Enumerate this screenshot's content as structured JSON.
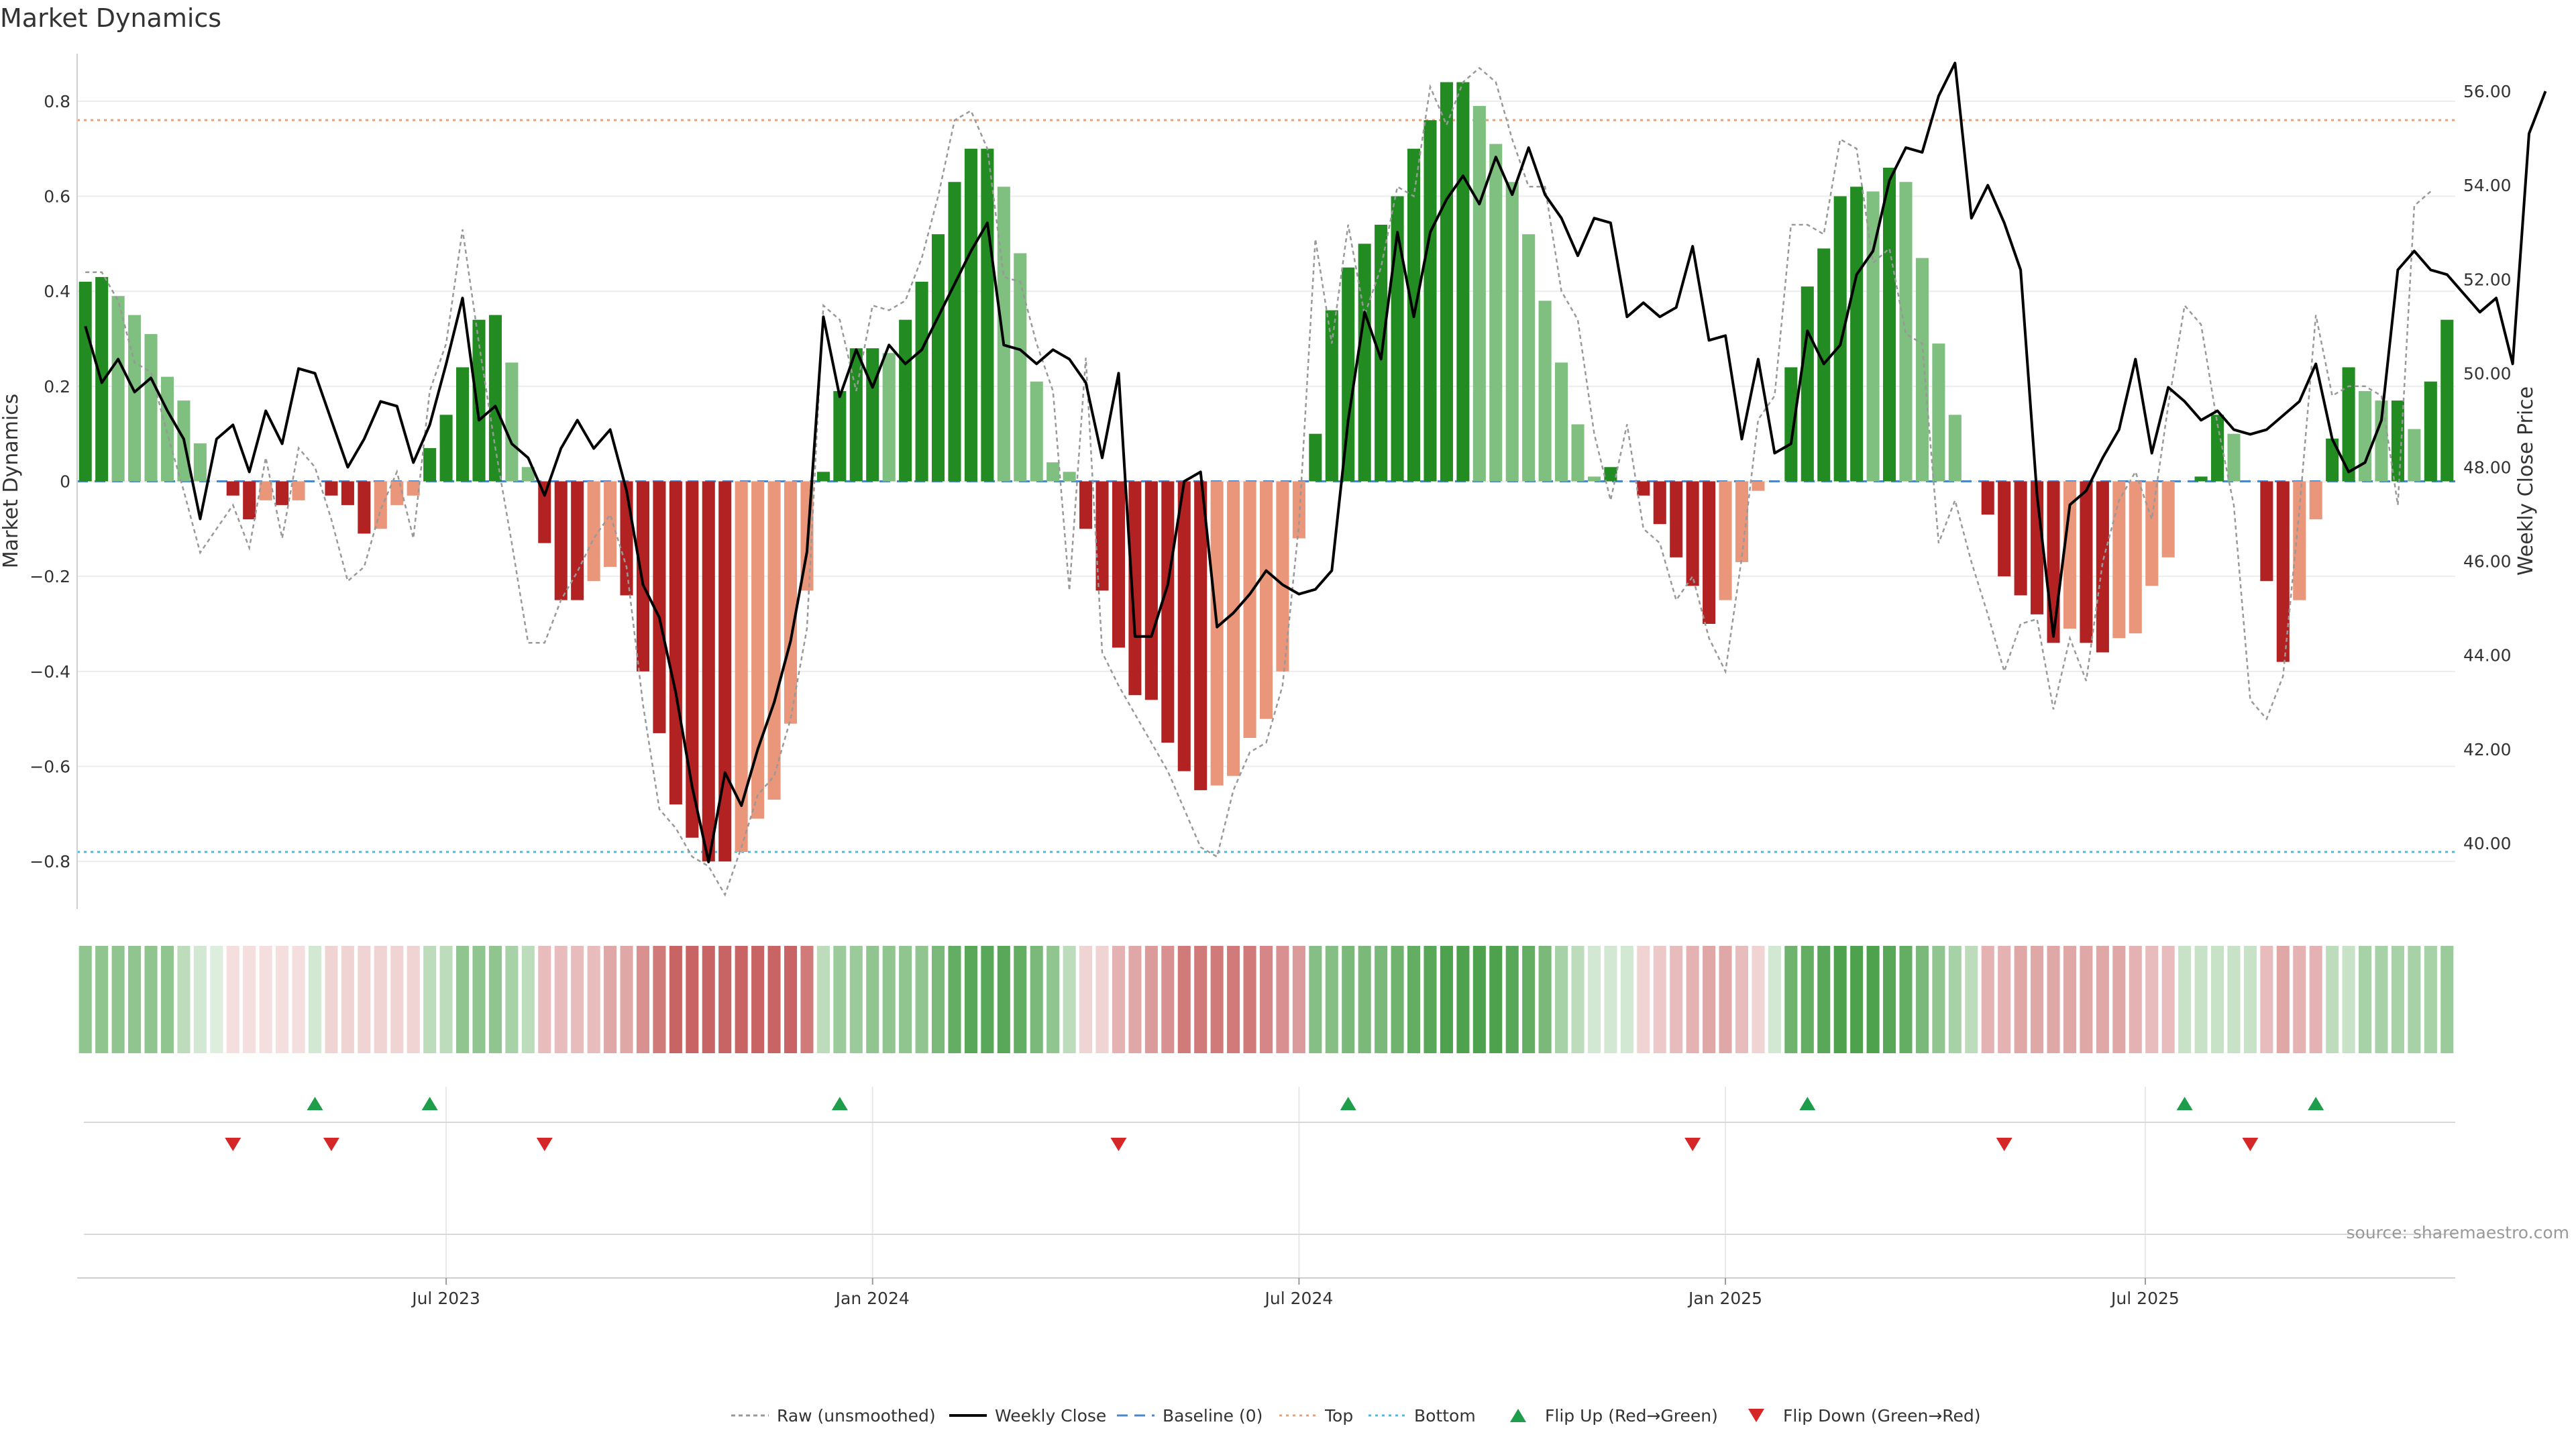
{
  "chart_data": {
    "type": "bar",
    "title": "Market Dynamics",
    "ylabel_left": "Market Dynamics",
    "ylabel_right": "Weekly Close Price",
    "source": "source: sharemaestro.com",
    "left_ylim": [
      -0.9,
      0.9
    ],
    "left_yticks": [
      -0.8,
      -0.6,
      -0.4,
      -0.2,
      0,
      0.2,
      0.4,
      0.6,
      0.8
    ],
    "left_ytick_labels": [
      "−0.8",
      "−0.6",
      "−0.4",
      "−0.2",
      "0",
      "0.2",
      "0.4",
      "0.6",
      "0.8"
    ],
    "right_ylim": [
      38.6,
      56.8
    ],
    "right_yticks": [
      40,
      42,
      44,
      46,
      48,
      50,
      52,
      54,
      56
    ],
    "right_ytick_labels": [
      "40.00",
      "42.00",
      "44.00",
      "46.00",
      "48.00",
      "50.00",
      "52.00",
      "54.00",
      "56.00"
    ],
    "x_ticks": [
      {
        "week": 22,
        "label": "Jul 2023"
      },
      {
        "week": 48,
        "label": "Jan 2024"
      },
      {
        "week": 74,
        "label": "Jul 2024"
      },
      {
        "week": 100,
        "label": "Jan 2025"
      },
      {
        "week": 125.6,
        "label": "Jul 2025"
      }
    ],
    "top_level": 0.76,
    "bottom_level": -0.78,
    "baseline": 0,
    "colors": {
      "strong_up": "#228b22",
      "weak_up": "#7fbf7f",
      "strong_down": "#b22222",
      "weak_down": "#e9967a",
      "close": "#000000",
      "raw": "#999999",
      "baseline": "#4a86c8",
      "top": "#e9a07a",
      "bottom": "#4fb8d8",
      "flip_up": "#1e9e4a",
      "flip_down": "#d62728"
    },
    "momentum": [
      0.42,
      0.43,
      0.39,
      0.35,
      0.31,
      0.22,
      0.17,
      0.08,
      0.0,
      -0.03,
      -0.08,
      -0.04,
      -0.05,
      -0.04,
      0.0,
      -0.03,
      -0.05,
      -0.11,
      -0.1,
      -0.05,
      -0.03,
      0.07,
      0.14,
      0.24,
      0.34,
      0.35,
      0.25,
      0.03,
      -0.13,
      -0.25,
      -0.25,
      -0.21,
      -0.18,
      -0.24,
      -0.4,
      -0.53,
      -0.68,
      -0.75,
      -0.8,
      -0.8,
      -0.78,
      -0.71,
      -0.67,
      -0.51,
      -0.23,
      0.02,
      0.19,
      0.28,
      0.28,
      0.27,
      0.34,
      0.42,
      0.52,
      0.63,
      0.7,
      0.7,
      0.62,
      0.48,
      0.21,
      0.04,
      0.02,
      -0.1,
      -0.23,
      -0.35,
      -0.45,
      -0.46,
      -0.55,
      -0.61,
      -0.65,
      -0.64,
      -0.62,
      -0.54,
      -0.5,
      -0.4,
      -0.12,
      0.1,
      0.36,
      0.45,
      0.5,
      0.54,
      0.6,
      0.7,
      0.76,
      0.84,
      0.84,
      0.79,
      0.71,
      0.63,
      0.52,
      0.38,
      0.25,
      0.12,
      0.01,
      0.03,
      0.0,
      -0.03,
      -0.09,
      -0.16,
      -0.22,
      -0.3,
      -0.25,
      -0.17,
      -0.02,
      0.0,
      0.24,
      0.41,
      0.49,
      0.6,
      0.62,
      0.61,
      0.66,
      0.63,
      0.47,
      0.29,
      0.14,
      0.0,
      -0.07,
      -0.2,
      -0.24,
      -0.28,
      -0.34,
      -0.31,
      -0.34,
      -0.36,
      -0.33,
      -0.32,
      -0.22,
      -0.16,
      0.0,
      0.01,
      0.14,
      0.1,
      0.0,
      -0.21,
      -0.38,
      -0.25,
      -0.08,
      0.09,
      0.24,
      0.19,
      0.17,
      0.17,
      0.11,
      0.21,
      0.34
    ],
    "weekly_close": [
      51.0,
      49.8,
      50.3,
      49.6,
      49.9,
      49.2,
      48.6,
      46.9,
      48.6,
      48.9,
      47.9,
      49.2,
      48.5,
      50.1,
      50.0,
      49.0,
      48.0,
      48.6,
      49.4,
      49.3,
      48.1,
      48.9,
      50.2,
      51.6,
      49.0,
      49.3,
      48.5,
      48.2,
      47.4,
      48.4,
      49.0,
      48.4,
      48.8,
      47.5,
      45.5,
      44.8,
      43.2,
      41.2,
      39.6,
      41.5,
      40.8,
      42.0,
      43.0,
      44.3,
      46.2,
      51.2,
      49.5,
      50.5,
      49.7,
      50.6,
      50.2,
      50.5,
      51.2,
      51.9,
      52.6,
      53.2,
      50.6,
      50.5,
      50.2,
      50.5,
      50.3,
      49.8,
      48.2,
      50.0,
      44.4,
      44.4,
      45.5,
      47.7,
      47.9,
      44.6,
      44.9,
      45.3,
      45.8,
      45.5,
      45.3,
      45.4,
      45.8,
      49.0,
      51.3,
      50.3,
      53.0,
      51.2,
      53.0,
      53.7,
      54.2,
      53.6,
      54.6,
      53.8,
      54.8,
      53.8,
      53.3,
      52.5,
      53.3,
      53.2,
      51.2,
      51.5,
      51.2,
      51.4,
      52.7,
      50.7,
      50.8,
      48.6,
      50.3,
      48.3,
      48.5,
      50.9,
      50.2,
      50.6,
      52.1,
      52.6,
      54.1,
      54.8,
      54.7,
      55.9,
      56.6,
      53.3,
      54.0,
      53.2,
      52.2,
      47.4,
      44.4,
      47.2,
      47.5,
      48.2,
      48.8,
      50.3,
      48.3,
      49.7,
      49.4,
      49.0,
      49.2,
      48.8,
      48.7,
      48.8,
      49.1,
      49.4,
      50.2,
      48.6,
      47.9,
      48.1,
      49.0,
      52.2,
      52.6,
      52.2,
      52.1,
      51.7,
      51.3,
      51.6,
      50.2,
      55.1,
      56.0
    ],
    "raw": [
      0.44,
      0.44,
      0.38,
      0.25,
      0.23,
      0.1,
      -0.02,
      -0.15,
      -0.1,
      -0.05,
      -0.14,
      0.05,
      -0.12,
      0.07,
      0.03,
      -0.08,
      -0.21,
      -0.18,
      -0.06,
      0.02,
      -0.12,
      0.19,
      0.29,
      0.53,
      0.29,
      0.07,
      -0.13,
      -0.34,
      -0.34,
      -0.25,
      -0.19,
      -0.12,
      -0.07,
      -0.18,
      -0.47,
      -0.69,
      -0.73,
      -0.79,
      -0.81,
      -0.87,
      -0.77,
      -0.66,
      -0.62,
      -0.5,
      -0.31,
      0.37,
      0.34,
      0.19,
      0.37,
      0.36,
      0.38,
      0.47,
      0.6,
      0.76,
      0.78,
      0.7,
      0.43,
      0.42,
      0.29,
      0.19,
      -0.23,
      0.26,
      -0.36,
      -0.43,
      -0.49,
      -0.55,
      -0.61,
      -0.69,
      -0.77,
      -0.79,
      -0.65,
      -0.57,
      -0.55,
      -0.43,
      -0.09,
      0.51,
      0.29,
      0.54,
      0.35,
      0.45,
      0.62,
      0.6,
      0.83,
      0.75,
      0.84,
      0.87,
      0.84,
      0.72,
      0.62,
      0.62,
      0.4,
      0.34,
      0.1,
      -0.04,
      0.12,
      -0.1,
      -0.13,
      -0.25,
      -0.2,
      -0.33,
      -0.4,
      -0.16,
      0.13,
      0.18,
      0.54,
      0.54,
      0.52,
      0.72,
      0.7,
      0.46,
      0.49,
      0.31,
      0.29,
      -0.13,
      -0.04,
      -0.17,
      -0.28,
      -0.4,
      -0.3,
      -0.29,
      -0.48,
      -0.33,
      -0.42,
      -0.17,
      -0.04,
      0.02,
      -0.08,
      0.16,
      0.37,
      0.33,
      0.12,
      -0.05,
      -0.46,
      -0.5,
      -0.41,
      -0.06,
      0.35,
      0.18,
      0.2,
      0.2,
      0.18,
      -0.05,
      0.58,
      0.61
    ],
    "regime_alpha": [
      0.5,
      0.5,
      0.5,
      0.5,
      0.5,
      0.5,
      0.3,
      0.2,
      0.15,
      0.15,
      0.15,
      0.15,
      0.15,
      0.15,
      0.2,
      0.2,
      0.2,
      0.2,
      0.2,
      0.2,
      0.2,
      0.3,
      0.3,
      0.5,
      0.5,
      0.5,
      0.4,
      0.3,
      0.3,
      0.3,
      0.3,
      0.3,
      0.4,
      0.4,
      0.5,
      0.6,
      0.7,
      0.7,
      0.7,
      0.7,
      0.7,
      0.7,
      0.7,
      0.7,
      0.6,
      0.3,
      0.45,
      0.45,
      0.5,
      0.5,
      0.5,
      0.5,
      0.6,
      0.7,
      0.75,
      0.75,
      0.75,
      0.7,
      0.6,
      0.5,
      0.3,
      0.2,
      0.2,
      0.35,
      0.4,
      0.45,
      0.5,
      0.6,
      0.6,
      0.6,
      0.6,
      0.6,
      0.55,
      0.5,
      0.45,
      0.55,
      0.55,
      0.6,
      0.6,
      0.6,
      0.65,
      0.7,
      0.75,
      0.8,
      0.8,
      0.8,
      0.8,
      0.75,
      0.7,
      0.6,
      0.4,
      0.3,
      0.2,
      0.2,
      0.2,
      0.2,
      0.25,
      0.3,
      0.35,
      0.4,
      0.4,
      0.3,
      0.2,
      0.2,
      0.65,
      0.7,
      0.75,
      0.8,
      0.8,
      0.8,
      0.75,
      0.7,
      0.6,
      0.5,
      0.4,
      0.3,
      0.35,
      0.35,
      0.4,
      0.4,
      0.4,
      0.4,
      0.4,
      0.4,
      0.4,
      0.35,
      0.3,
      0.3,
      0.25,
      0.25,
      0.25,
      0.25,
      0.25,
      0.3,
      0.4,
      0.35,
      0.35,
      0.3,
      0.25,
      0.4,
      0.4,
      0.4,
      0.4,
      0.4,
      0.45
    ],
    "flip_up_weeks": [
      14,
      21,
      46,
      77,
      105,
      128,
      136
    ],
    "flip_down_weeks": [
      9,
      15,
      28,
      63,
      98,
      117,
      132
    ],
    "legend": [
      {
        "label": "Raw (unsmoothed)",
        "style": "raw"
      },
      {
        "label": "Weekly Close",
        "style": "close"
      },
      {
        "label": "Baseline (0)",
        "style": "baseline"
      },
      {
        "label": "Top",
        "style": "top"
      },
      {
        "label": "Bottom",
        "style": "bottom"
      },
      {
        "label": "Flip Up (Red→Green)",
        "style": "flip_up"
      },
      {
        "label": "Flip Down (Green→Red)",
        "style": "flip_down"
      }
    ]
  }
}
